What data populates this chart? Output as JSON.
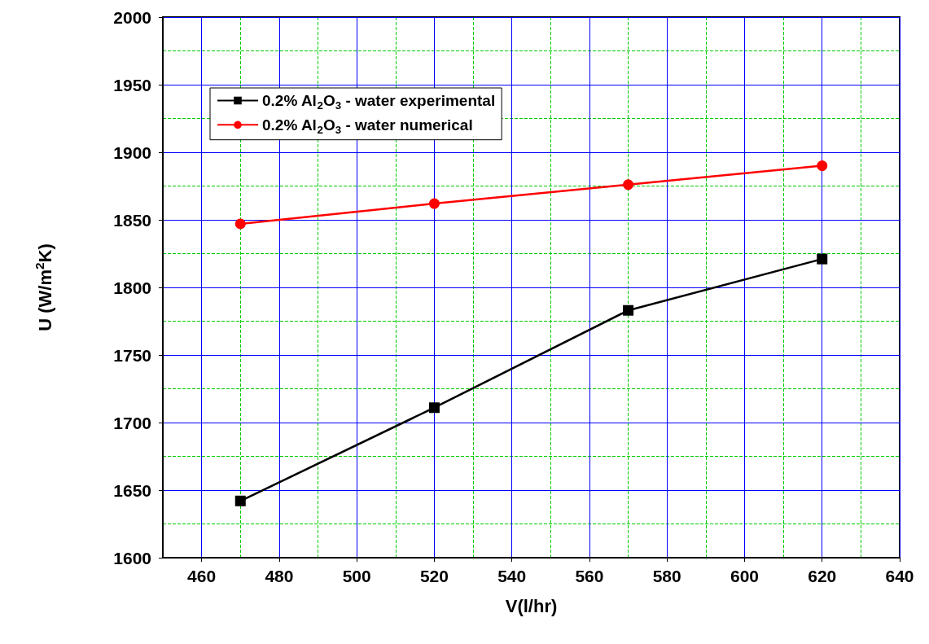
{
  "chart_data": {
    "type": "line",
    "xlabel": "V(l/hr)",
    "ylabel": "U (W/m$^{2}$K)",
    "x": [
      470,
      520,
      570,
      620
    ],
    "series": [
      {
        "name": "0.2% Al$_{2}$O$_{3}$ - water experimental",
        "color": "#000000",
        "marker": "square",
        "values": [
          1642,
          1711,
          1783,
          1821
        ]
      },
      {
        "name": "0.2% Al$_{2}$O$_{3}$ - water numerical",
        "color": "#ff0000",
        "marker": "circle",
        "values": [
          1847,
          1862,
          1876,
          1890
        ]
      }
    ],
    "xlim": [
      450,
      640
    ],
    "xticks": [
      460,
      {
        "value": 470,
        "label": null
      },
      480,
      {
        "value": 490,
        "label": null
      },
      500,
      {
        "value": 510,
        "label": null
      },
      520,
      {
        "value": 530,
        "label": null
      },
      540,
      {
        "value": 550,
        "label": null
      },
      560,
      {
        "value": 570,
        "label": null
      },
      580,
      {
        "value": 590,
        "label": null
      },
      600,
      {
        "value": 610,
        "label": null
      },
      620,
      {
        "value": 630,
        "label": null
      },
      640
    ],
    "ylim": [
      1600,
      2000
    ],
    "yticks": [
      1600,
      {
        "value": 1625,
        "label": null
      },
      1650,
      {
        "value": 1675,
        "label": null
      },
      1700,
      {
        "value": 1725,
        "label": null
      },
      1750,
      {
        "value": 1775,
        "label": null
      },
      1800,
      {
        "value": 1825,
        "label": null
      },
      1850,
      {
        "value": 1875,
        "label": null
      },
      1900,
      {
        "value": 1925,
        "label": null
      },
      1950,
      {
        "value": 1975,
        "label": null
      },
      2000
    ],
    "grid": true,
    "legend": "top left",
    "line_style": "solid"
  }
}
